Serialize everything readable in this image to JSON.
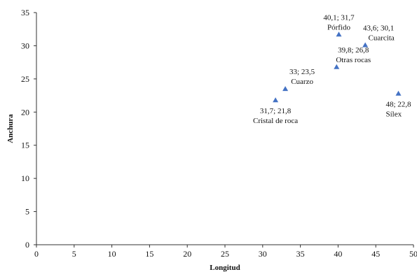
{
  "chart_data": {
    "type": "scatter",
    "title": "",
    "xlabel": "Longitud",
    "ylabel": "Anchura",
    "xlim": [
      0,
      50
    ],
    "ylim": [
      0,
      35
    ],
    "xticks": [
      0,
      5,
      10,
      15,
      20,
      25,
      30,
      35,
      40,
      45,
      50
    ],
    "yticks": [
      0,
      5,
      10,
      15,
      20,
      25,
      30,
      35
    ],
    "grid": false,
    "legend": "none",
    "marker": "triangle",
    "marker_color": "#4472C4",
    "points": [
      {
        "x": 31.7,
        "y": 21.8,
        "label": "Cristal de roca",
        "value_label": "31,7; 21,8"
      },
      {
        "x": 33,
        "y": 23.5,
        "label": "Cuarzo",
        "value_label": "33; 23,5"
      },
      {
        "x": 39.8,
        "y": 26.8,
        "label": "Otras rocas",
        "value_label": "39,8; 26,8"
      },
      {
        "x": 40.1,
        "y": 31.7,
        "label": "Pórfido",
        "value_label": "40,1; 31,7"
      },
      {
        "x": 43.6,
        "y": 30.1,
        "label": "Cuarcita",
        "value_label": "43,6; 30,1"
      },
      {
        "x": 48,
        "y": 22.8,
        "label": "Sílex",
        "value_label": "48; 22,8"
      }
    ]
  }
}
